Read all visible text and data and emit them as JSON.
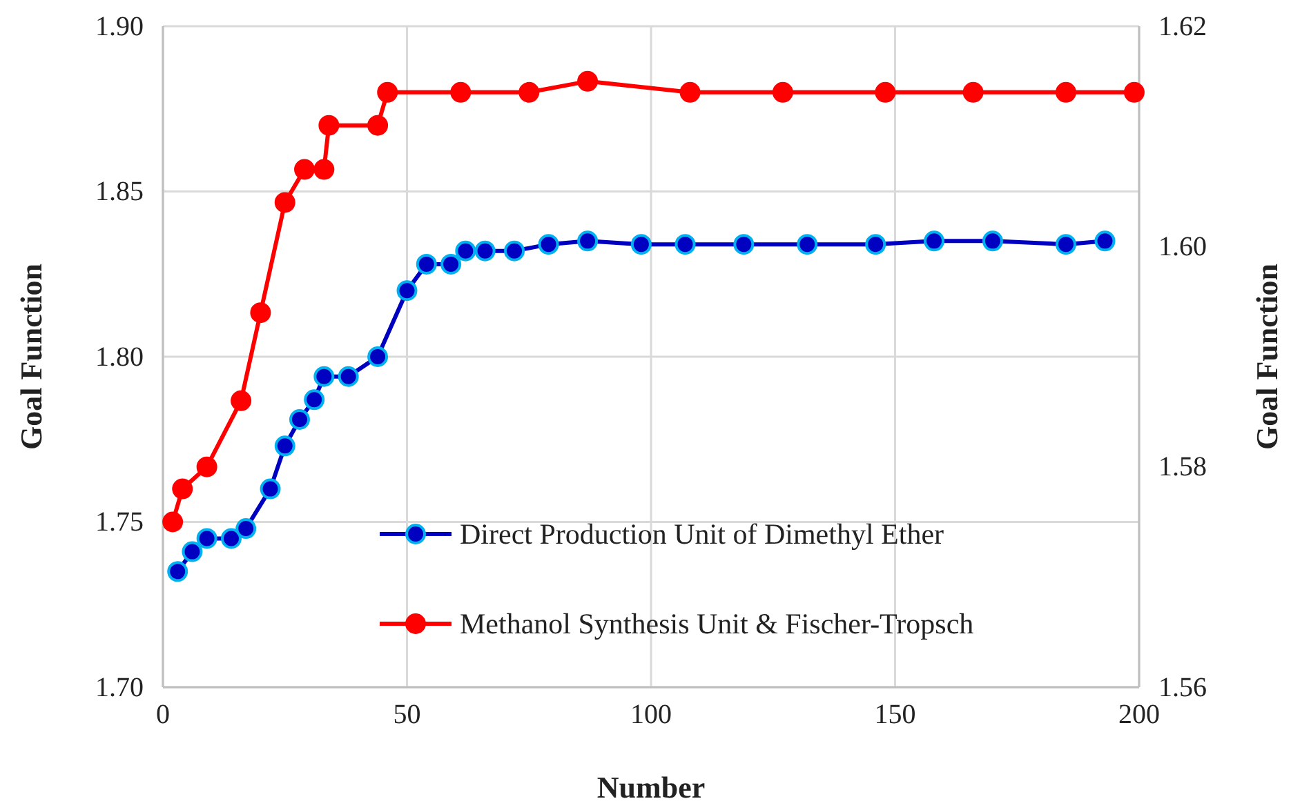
{
  "chart_data": {
    "type": "line",
    "xlabel": "Number",
    "ylabel": "Goal Function",
    "y2label": "Goal Function",
    "xlim": [
      0,
      200
    ],
    "xticks": [
      0,
      50,
      100,
      150,
      200
    ],
    "ylim": [
      1.7,
      1.9
    ],
    "yticks": [
      {
        "value": 1.7,
        "label": "1.70"
      },
      {
        "value": 1.75,
        "label": "1.75"
      },
      {
        "value": 1.8,
        "label": "1.80"
      },
      {
        "value": 1.85,
        "label": "1.85"
      },
      {
        "value": 1.9,
        "label": "1.90"
      }
    ],
    "y2lim": [
      1.56,
      1.62
    ],
    "y2ticks": [
      {
        "value": 1.56,
        "label": "1.56"
      },
      {
        "value": 1.58,
        "label": "1.58"
      },
      {
        "value": 1.6,
        "label": "1.60"
      },
      {
        "value": 1.62,
        "label": "1.62"
      }
    ],
    "grid": true,
    "legend": "bottom right",
    "marker": "circle",
    "line_style": "solid",
    "series": [
      {
        "name": "Direct Production Unit of Dimethyl Ether",
        "color": "#0000c0",
        "x": [
          3,
          6,
          9,
          14,
          17,
          22,
          25,
          28,
          31,
          33,
          38,
          44,
          50,
          54,
          59,
          62,
          66,
          72,
          79,
          87,
          98,
          107,
          119,
          132,
          146,
          158,
          170,
          185,
          193
        ],
        "values": [
          1.735,
          1.741,
          1.745,
          1.745,
          1.748,
          1.76,
          1.773,
          1.781,
          1.787,
          1.794,
          1.794,
          1.8,
          1.82,
          1.828,
          1.828,
          1.832,
          1.832,
          1.832,
          1.834,
          1.835,
          1.834,
          1.834,
          1.834,
          1.834,
          1.834,
          1.835,
          1.835,
          1.834,
          1.835
        ]
      },
      {
        "name": "Methanol Synthesis Unit & Fischer-Tropsch",
        "color": "#ff0000",
        "axis": "y2",
        "x": [
          2,
          4,
          9,
          16,
          20,
          25,
          29,
          33,
          34,
          44,
          46,
          61,
          75,
          87,
          108,
          127,
          148,
          166,
          185,
          199
        ],
        "values": [
          1.575,
          1.578,
          1.58,
          1.586,
          1.594,
          1.604,
          1.607,
          1.607,
          1.611,
          1.611,
          1.614,
          1.614,
          1.614,
          1.615,
          1.614,
          1.614,
          1.614,
          1.614,
          1.614,
          1.614
        ]
      }
    ]
  }
}
